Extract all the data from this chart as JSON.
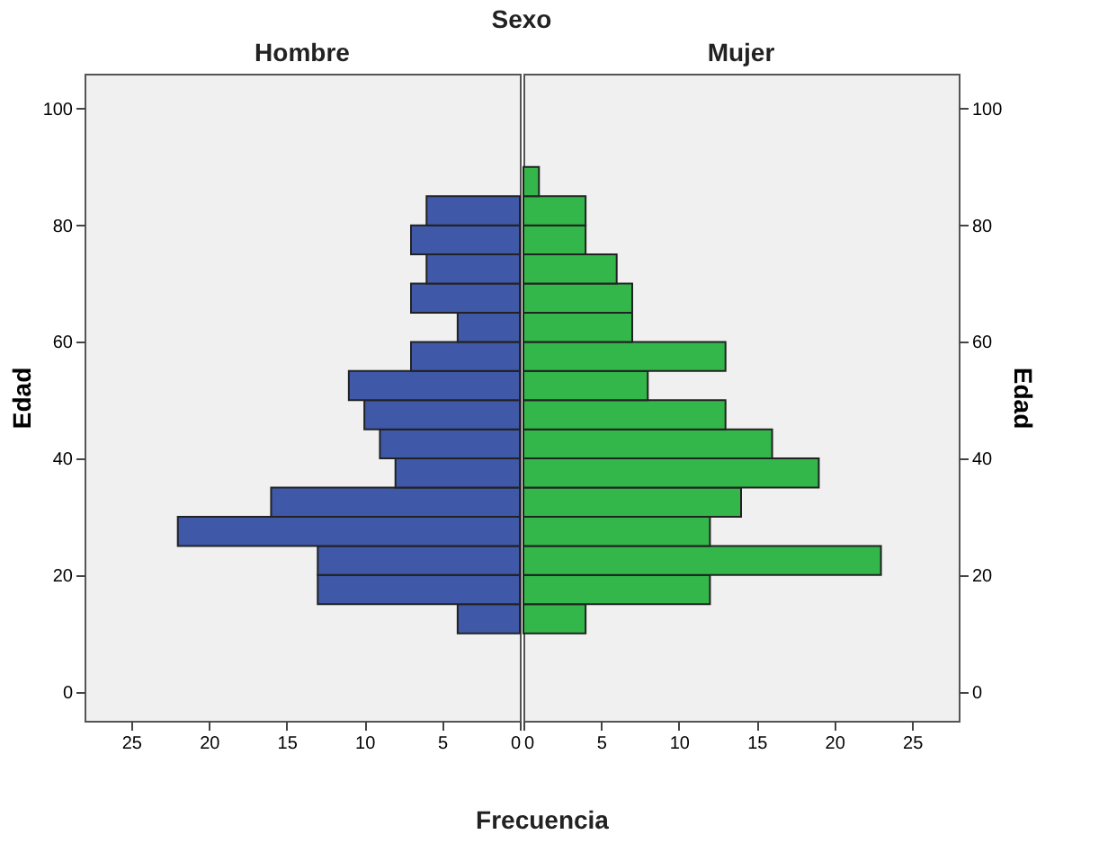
{
  "chart_data": [
    {
      "type": "histogram",
      "orientation": "horizontal",
      "title": "Hombre",
      "annotations": [
        "Sexo"
      ],
      "xlabel": "Frecuencia",
      "ylabel": "Edad",
      "color": "#3f58a8",
      "bins": [
        10,
        15,
        20,
        25,
        30,
        35,
        40,
        45,
        50,
        55,
        60,
        65,
        70,
        75,
        80,
        85
      ],
      "values": [
        4,
        13,
        13,
        22,
        16,
        8,
        9,
        10,
        11,
        7,
        4,
        7,
        6,
        7,
        6
      ],
      "xlim": [
        28,
        0
      ],
      "xticks": [
        25,
        20,
        15,
        10,
        5,
        0
      ],
      "ylim": [
        -5,
        106
      ],
      "yticks": [
        0,
        20,
        40,
        60,
        80,
        100
      ]
    },
    {
      "type": "histogram",
      "orientation": "horizontal",
      "title": "Mujer",
      "ylabel": "Edad",
      "color": "#33b74a",
      "bins": [
        10,
        15,
        20,
        25,
        30,
        35,
        40,
        45,
        50,
        55,
        60,
        65,
        70,
        75,
        80,
        85,
        90
      ],
      "values": [
        4,
        12,
        23,
        12,
        14,
        19,
        16,
        13,
        8,
        13,
        7,
        7,
        6,
        4,
        4,
        1
      ],
      "xlim": [
        0,
        28
      ],
      "xticks": [
        0,
        5,
        10,
        15,
        20,
        25
      ],
      "ylim": [
        -5,
        106
      ],
      "yticks": [
        0,
        20,
        40,
        60,
        80,
        100
      ]
    }
  ]
}
